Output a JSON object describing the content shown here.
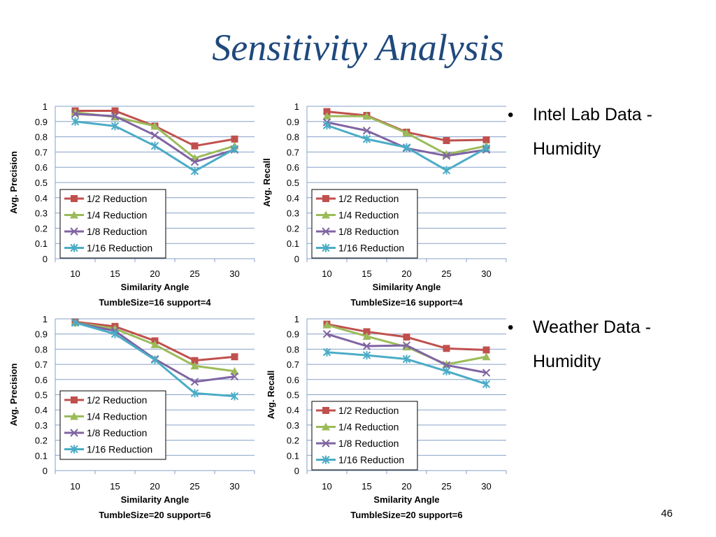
{
  "slide": {
    "title": "Sensitivity Analysis",
    "bullets": [
      "Intel Lab Data - Humidity",
      "Weather Data - Humidity"
    ],
    "page_number": "46"
  },
  "colors": {
    "title": "#1f497d",
    "half": "#c0504d",
    "quarter": "#9bbb59",
    "eighth": "#8064a2",
    "sixteenth": "#4bacc6",
    "gridline": "#86a0c8"
  },
  "chart_data": [
    {
      "type": "line",
      "x": [
        10,
        15,
        20,
        25,
        30
      ],
      "xlabel": "Similarity Angle",
      "subtitle": "TumbleSize=16 support=4",
      "ylabel": "Avg. Precision",
      "ylim": [
        0,
        1
      ],
      "yticks": [
        "0",
        "0.1",
        "0.2",
        "0.3",
        "0.4",
        "0.5",
        "0.6",
        "0.7",
        "0.8",
        "0.9",
        "1"
      ],
      "grid": true,
      "legend": "bottom-left",
      "series": [
        {
          "name": "1/2 Reduction",
          "marker": "square",
          "color": "#c0504d",
          "values": [
            0.97,
            0.97,
            0.87,
            0.74,
            0.785
          ]
        },
        {
          "name": "1/4 Reduction",
          "marker": "triangle",
          "color": "#9bbb59",
          "values": [
            0.96,
            0.93,
            0.87,
            0.66,
            0.74
          ]
        },
        {
          "name": "1/8 Reduction",
          "marker": "x",
          "color": "#8064a2",
          "values": [
            0.95,
            0.935,
            0.81,
            0.635,
            0.715
          ]
        },
        {
          "name": "1/16 Reduction",
          "marker": "star",
          "color": "#4bacc6",
          "values": [
            0.9,
            0.87,
            0.74,
            0.575,
            0.72
          ]
        }
      ]
    },
    {
      "type": "line",
      "x": [
        10,
        15,
        20,
        25,
        30
      ],
      "xlabel": "Similarity Angle",
      "subtitle": "TumbleSize=16 support=4",
      "ylabel": "Avg. Recall",
      "ylim": [
        0,
        1
      ],
      "yticks": [
        "0",
        "0.1",
        "0.2",
        "0.3",
        "0.4",
        "0.5",
        "0.6",
        "0.7",
        "0.8",
        "0.9",
        "1"
      ],
      "grid": true,
      "legend": "bottom-left",
      "series": [
        {
          "name": "1/2 Reduction",
          "marker": "square",
          "color": "#c0504d",
          "values": [
            0.965,
            0.94,
            0.83,
            0.775,
            0.78
          ]
        },
        {
          "name": "1/4 Reduction",
          "marker": "triangle",
          "color": "#9bbb59",
          "values": [
            0.935,
            0.935,
            0.825,
            0.685,
            0.74
          ]
        },
        {
          "name": "1/8 Reduction",
          "marker": "x",
          "color": "#8064a2",
          "values": [
            0.895,
            0.84,
            0.725,
            0.675,
            0.715
          ]
        },
        {
          "name": "1/16 Reduction",
          "marker": "star",
          "color": "#4bacc6",
          "values": [
            0.875,
            0.785,
            0.73,
            0.58,
            0.725
          ]
        }
      ]
    },
    {
      "type": "line",
      "x": [
        10,
        15,
        20,
        25,
        30
      ],
      "xlabel": "Similarity Angle",
      "subtitle": "TumbleSize=20 support=6",
      "ylabel": "Avg. Precision",
      "ylim": [
        0,
        1
      ],
      "yticks": [
        "0",
        "0.1",
        "0.2",
        "0.3",
        "0.4",
        "0.5",
        "0.6",
        "0.7",
        "0.8",
        "0.9",
        "1"
      ],
      "grid": true,
      "legend": "bottom-left",
      "series": [
        {
          "name": "1/2 Reduction",
          "marker": "square",
          "color": "#c0504d",
          "values": [
            0.98,
            0.95,
            0.855,
            0.725,
            0.75
          ]
        },
        {
          "name": "1/4 Reduction",
          "marker": "triangle",
          "color": "#9bbb59",
          "values": [
            0.975,
            0.935,
            0.83,
            0.69,
            0.655
          ]
        },
        {
          "name": "1/8 Reduction",
          "marker": "x",
          "color": "#8064a2",
          "values": [
            0.975,
            0.92,
            0.735,
            0.585,
            0.62
          ]
        },
        {
          "name": "1/16 Reduction",
          "marker": "star",
          "color": "#4bacc6",
          "values": [
            0.975,
            0.9,
            0.73,
            0.51,
            0.49
          ]
        }
      ]
    },
    {
      "type": "line",
      "x": [
        10,
        15,
        20,
        25,
        30
      ],
      "xlabel": "Smilarity Angle",
      "subtitle": "TumbleSize=20 support=6",
      "ylabel": "Avg. Recall",
      "ylim": [
        0,
        1
      ],
      "yticks": [
        "0",
        "0.1",
        "0.2",
        "0.3",
        "0.4",
        "0.5",
        "0.6",
        "0.7",
        "0.8",
        "0.9",
        "1"
      ],
      "grid": true,
      "legend": "bottom-left",
      "series": [
        {
          "name": "1/2 Reduction",
          "marker": "square",
          "color": "#c0504d",
          "values": [
            0.965,
            0.915,
            0.88,
            0.805,
            0.795
          ]
        },
        {
          "name": "1/4 Reduction",
          "marker": "triangle",
          "color": "#9bbb59",
          "values": [
            0.96,
            0.885,
            0.815,
            0.7,
            0.75
          ]
        },
        {
          "name": "1/8 Reduction",
          "marker": "x",
          "color": "#8064a2",
          "values": [
            0.9,
            0.82,
            0.825,
            0.695,
            0.645
          ]
        },
        {
          "name": "1/16 Reduction",
          "marker": "star",
          "color": "#4bacc6",
          "values": [
            0.78,
            0.76,
            0.735,
            0.655,
            0.57
          ]
        }
      ]
    }
  ]
}
